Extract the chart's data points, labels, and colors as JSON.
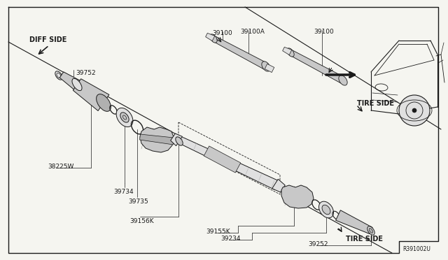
{
  "bg_color": "#f5f5f0",
  "line_color": "#1a1a1a",
  "ref_code": "R391002U",
  "labels": {
    "diff_side": "DIFF SIDE",
    "tire_side_top": "TIRE SIDE",
    "tire_side_bottom": "TIRE SIDE",
    "part_39752": "39752",
    "part_38225w": "38225W",
    "part_39734": "39734",
    "part_39735": "39735",
    "part_39156k": "39156K",
    "part_39100_left": "39100",
    "part_39100a": "39100A",
    "part_39100_right": "39100",
    "part_39155k": "39155K",
    "part_39234": "39234",
    "part_39252": "39252"
  }
}
